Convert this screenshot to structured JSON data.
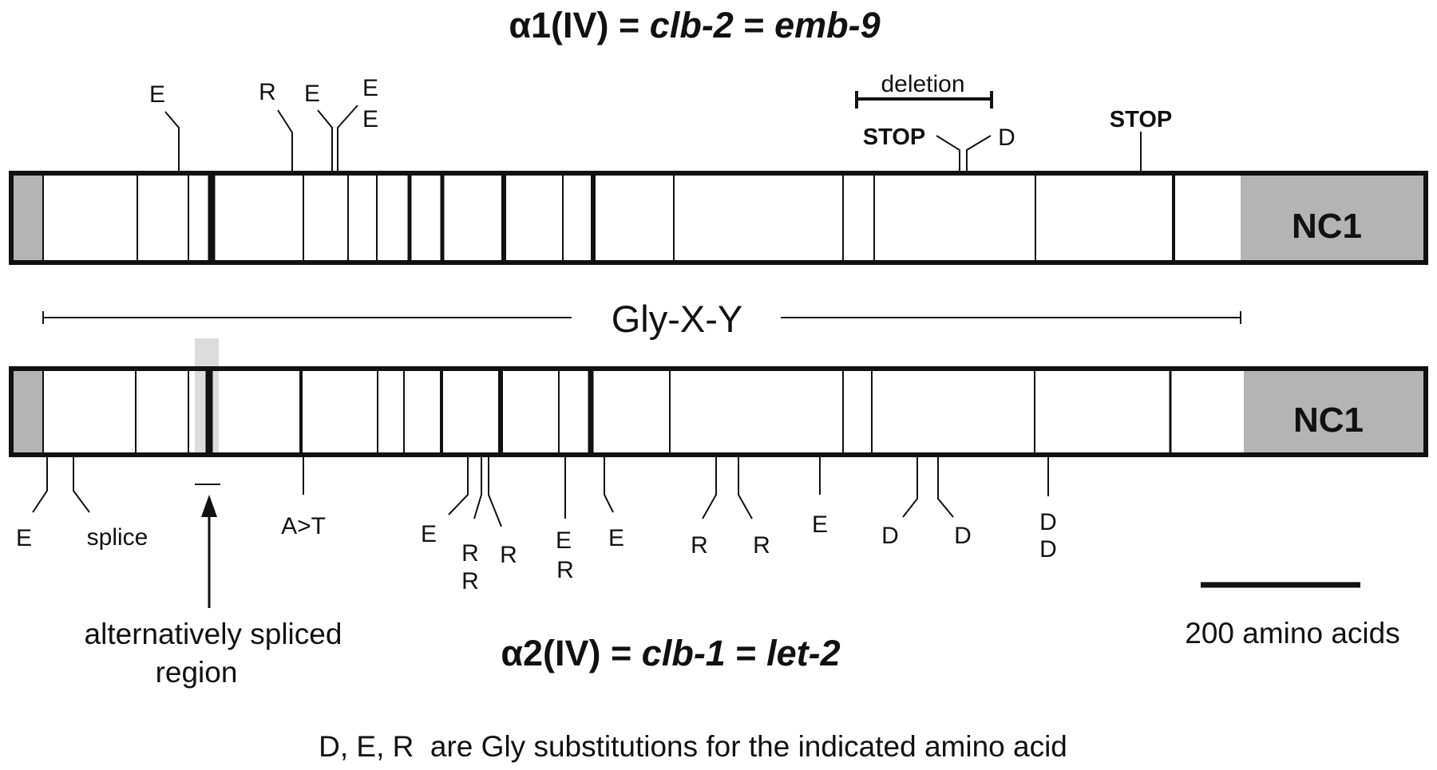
{
  "title_top": {
    "prefix": "α1(IV) = ",
    "gene1": "clb-2",
    "sep": " = ",
    "gene2": "emb-9"
  },
  "title_bottom": {
    "prefix": "α2(IV) = ",
    "gene1": "clb-1",
    "sep": " = ",
    "gene2": "let-2"
  },
  "nc1_label": "NC1",
  "gly_label": "Gly-X-Y",
  "deletion_label": "deletion",
  "scale_label": "200 amino acids",
  "alt_splice_label": {
    "line1": "alternatively spliced",
    "line2": "region"
  },
  "footnote": "D, E, R  are Gly substitutions for the indicated amino acid",
  "top_mutations": [
    {
      "id": "t1",
      "labels": [
        "E"
      ]
    },
    {
      "id": "t2",
      "labels": [
        "R"
      ]
    },
    {
      "id": "t3",
      "labels": [
        "E"
      ]
    },
    {
      "id": "t4",
      "labels": [
        "E",
        "E"
      ]
    },
    {
      "id": "t5",
      "labels": [
        "STOP"
      ]
    },
    {
      "id": "t6",
      "labels": [
        "D"
      ]
    },
    {
      "id": "t7",
      "labels": [
        "STOP"
      ]
    }
  ],
  "bottom_mutations": [
    {
      "id": "b1",
      "labels": [
        "E"
      ]
    },
    {
      "id": "b2",
      "labels": [
        "splice"
      ]
    },
    {
      "id": "b3",
      "labels": [
        "A>T"
      ]
    },
    {
      "id": "b4",
      "labels": [
        "E"
      ]
    },
    {
      "id": "b5",
      "labels": [
        "R",
        "R"
      ]
    },
    {
      "id": "b6",
      "labels": [
        "R"
      ]
    },
    {
      "id": "b7",
      "labels": [
        "E",
        "R"
      ]
    },
    {
      "id": "b8",
      "labels": [
        "E"
      ]
    },
    {
      "id": "b9",
      "labels": [
        "R"
      ]
    },
    {
      "id": "b10",
      "labels": [
        "R"
      ]
    },
    {
      "id": "b11",
      "labels": [
        "E"
      ]
    },
    {
      "id": "b12",
      "labels": [
        "D"
      ]
    },
    {
      "id": "b13",
      "labels": [
        "D"
      ]
    },
    {
      "id": "b14",
      "labels": [
        "D",
        "D"
      ]
    }
  ],
  "colors": {
    "ink": "#111111",
    "domain_fill": "#b4b4b4",
    "alt_splice_shade": "#dcdcdc",
    "background": "#ffffff"
  }
}
